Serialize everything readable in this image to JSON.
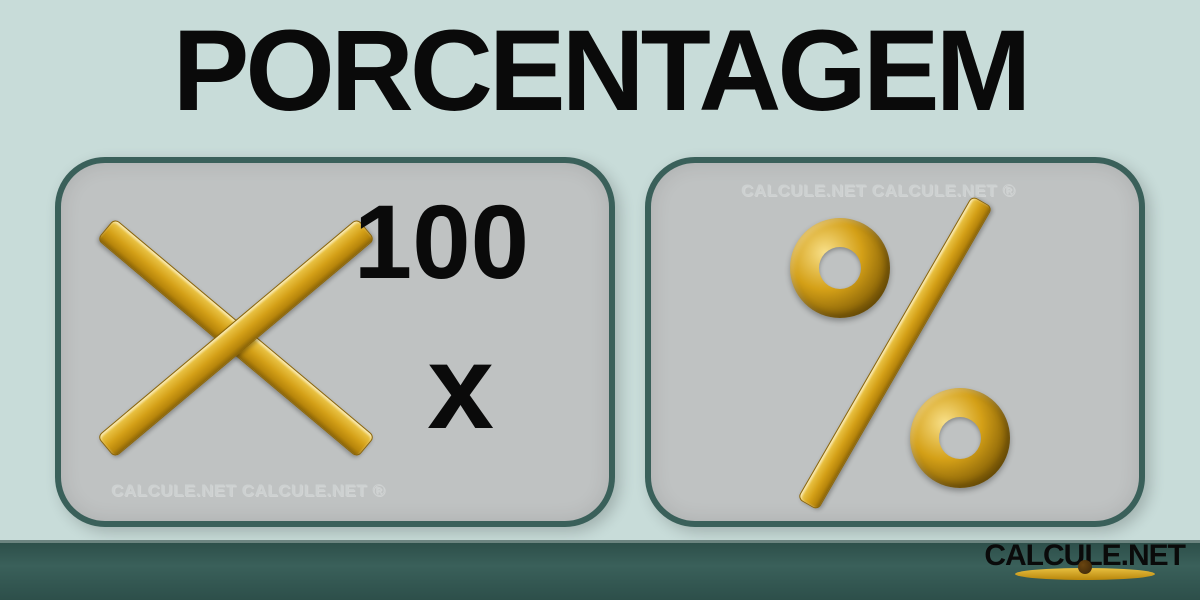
{
  "title": "PORCENTAGEM",
  "panels": {
    "left": {
      "number": "100",
      "variable": "x",
      "watermark": "CALCULE.NET CALCULE.NET ®",
      "cross_color_gradient": [
        "#f8e08a",
        "#e8c040",
        "#d4a017",
        "#b8860b",
        "#8b6508"
      ],
      "border_color": "#3a605a",
      "background_color": "#bfc2c2",
      "border_radius": 50
    },
    "right": {
      "watermark": "CALCULE.NET CALCULE.NET ®",
      "percent_color_gradient": [
        "#f8e08a",
        "#e8c040",
        "#d4a017",
        "#b8860b",
        "#8b6508"
      ],
      "border_color": "#3a605a",
      "background_color": "#bfc2c2",
      "border_radius": 50
    }
  },
  "footer": {
    "background_color": "#3a605a"
  },
  "logo": {
    "text": "CALCULE.NET",
    "scale_colors": [
      "#e8c040",
      "#b8860b"
    ],
    "knob_colors": [
      "#6a4510",
      "#3a2508"
    ]
  },
  "colors": {
    "page_background": "#c8dcd9",
    "text_color": "#0a0a0a",
    "watermark_color": "#cdd1d1"
  },
  "typography": {
    "title_fontsize": 115,
    "title_weight": 900,
    "number_fontsize": 105,
    "variable_fontsize": 120,
    "watermark_fontsize": 17,
    "logo_fontsize": 30
  }
}
